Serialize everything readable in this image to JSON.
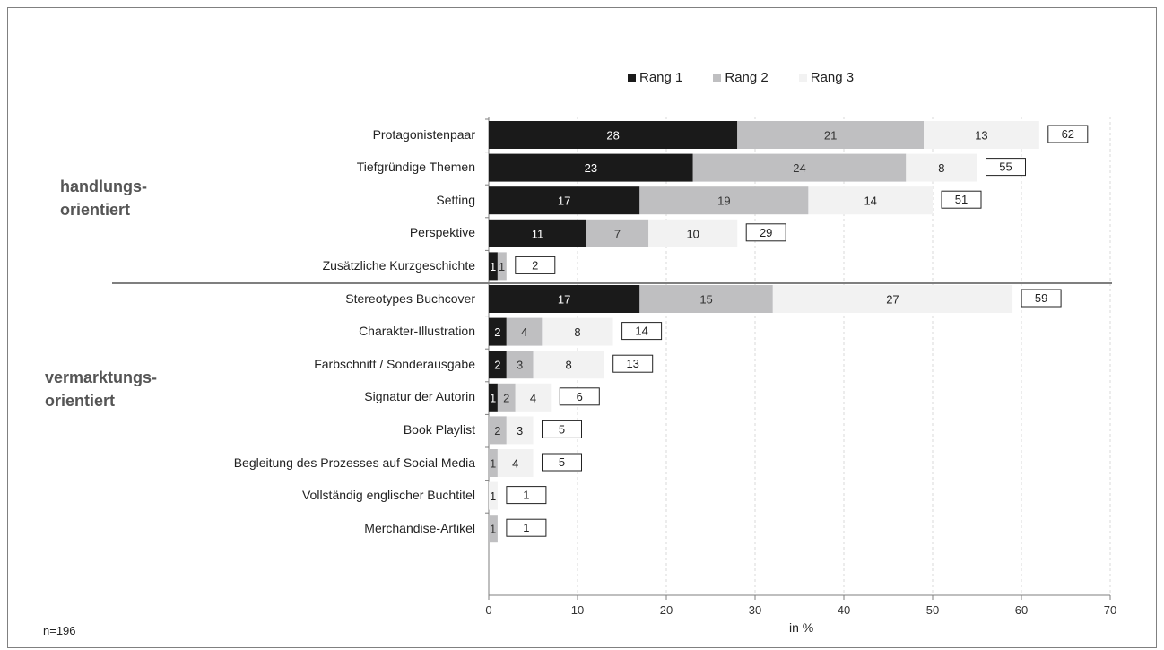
{
  "chart_data": {
    "type": "bar",
    "orientation": "horizontal",
    "stacked": true,
    "xlabel": "in %",
    "xlim": [
      0,
      70
    ],
    "xticks": [
      0,
      10,
      20,
      30,
      40,
      50,
      60,
      70
    ],
    "legend_position": "top",
    "grid": "vertical dashed",
    "note": "n=196",
    "groups": [
      {
        "label": "handlungs-\norientiert",
        "categories": [
          "Protagonistenpaar",
          "Tiefgründige Themen",
          "Setting",
          "Perspektive",
          "Zusätzliche Kurzgeschichte"
        ]
      },
      {
        "label": "vermarktungs-\norientiert",
        "categories": [
          "Stereotypes Buchcover",
          "Charakter-Illustration",
          "Farbschnitt / Sonderausgabe",
          "Signatur der Autorin",
          "Book Playlist",
          "Begleitung des Prozesses auf Social Media",
          "Vollständig englischer Buchtitel",
          "Merchandise-Artikel"
        ]
      }
    ],
    "categories": [
      "Protagonistenpaar",
      "Tiefgründige Themen",
      "Setting",
      "Perspektive",
      "Zusätzliche Kurzgeschichte",
      "Stereotypes Buchcover",
      "Charakter-Illustration",
      "Farbschnitt / Sonderausgabe",
      "Signatur der Autorin",
      "Book Playlist",
      "Begleitung des Prozesses auf Social Media",
      "Vollständig englischer Buchtitel",
      "Merchandise-Artikel"
    ],
    "series": [
      {
        "name": "Rang 1",
        "color": "#1a1a1a",
        "labelColor": "#ffffff",
        "values": [
          28,
          23,
          17,
          11,
          1,
          17,
          2,
          2,
          1,
          0,
          0,
          0,
          0
        ]
      },
      {
        "name": "Rang 2",
        "color": "#bfbfc1",
        "labelColor": "#333333",
        "values": [
          21,
          24,
          19,
          7,
          1,
          15,
          4,
          3,
          2,
          2,
          1,
          0,
          1
        ]
      },
      {
        "name": "Rang 3",
        "color": "#f2f2f2",
        "labelColor": "#222222",
        "values": [
          13,
          8,
          14,
          10,
          0,
          27,
          8,
          8,
          4,
          3,
          4,
          1,
          0
        ]
      }
    ],
    "totals": [
      62,
      55,
      51,
      29,
      2,
      59,
      14,
      13,
      6,
      5,
      5,
      1,
      1
    ]
  },
  "labels": {
    "group1": "handlungs-\norientiert",
    "group2": "vermarktungs-\norientiert",
    "xlabel": "in %",
    "note": "n=196"
  }
}
